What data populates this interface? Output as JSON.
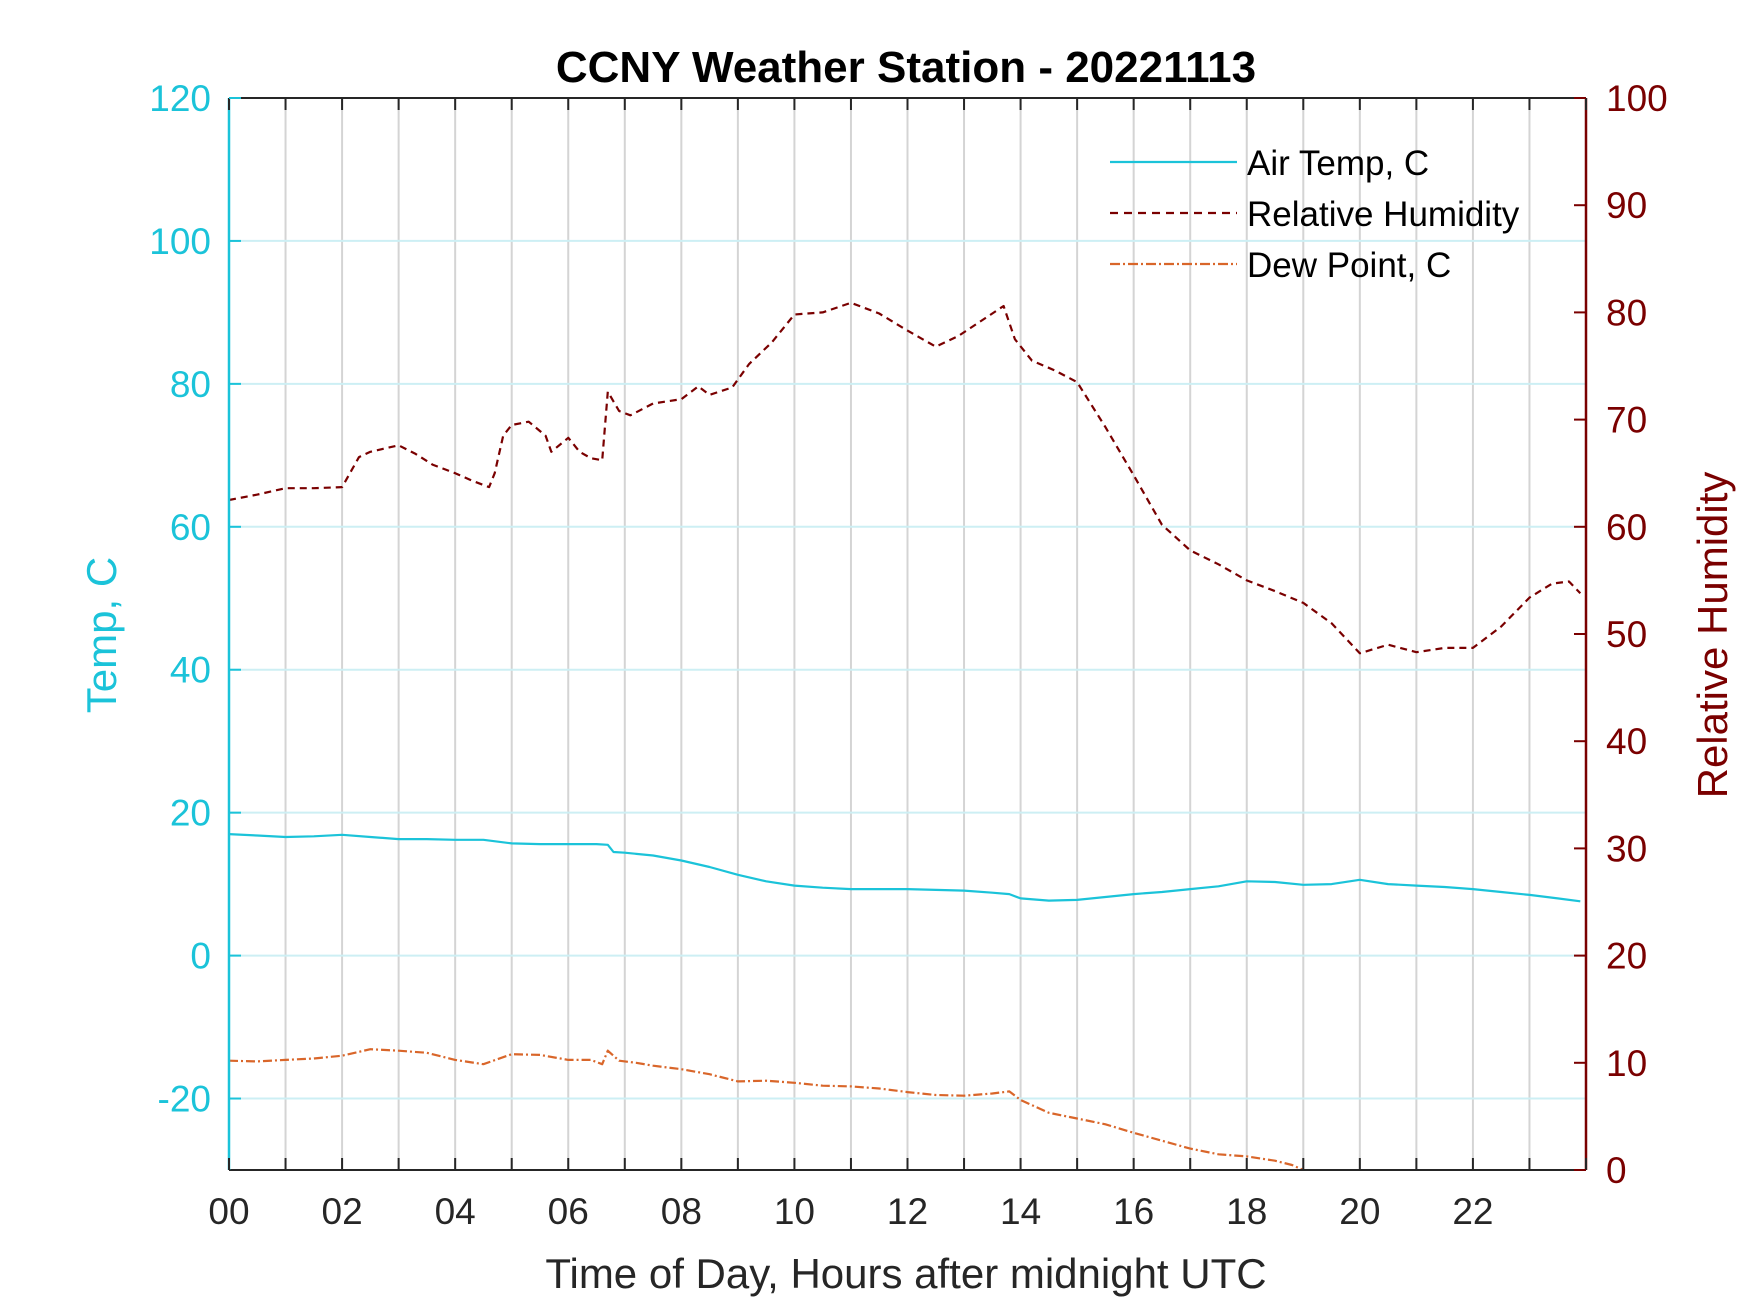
{
  "colors": {
    "air_temp": "#1BC3D9",
    "humidity": "#7A0000",
    "dew_point": "#D9662A",
    "left_axis": "#1BC3D9",
    "right_axis": "#7A0000",
    "vgrid": "#D4D4D4",
    "hgrid": "#CDEFF4",
    "x_axis": "#262626"
  },
  "chart_data": {
    "type": "line",
    "title": "CCNY Weather Station - 20221113",
    "xlabel": "Time of Day, Hours after midnight UTC",
    "ylabel_left": "Temp, C",
    "ylabel_right": "Relative Humidity",
    "xlim": [
      0,
      24
    ],
    "ylim_left": [
      -30,
      120
    ],
    "ylim_right": [
      0,
      100
    ],
    "x_ticks": [
      0,
      2,
      4,
      6,
      8,
      10,
      12,
      14,
      16,
      18,
      20,
      22
    ],
    "x_tick_labels": [
      "00",
      "02",
      "04",
      "06",
      "08",
      "10",
      "12",
      "14",
      "16",
      "18",
      "20",
      "22"
    ],
    "y_left_ticks": [
      -20,
      0,
      20,
      40,
      60,
      80,
      100,
      120
    ],
    "y_left_tick_labels": [
      "-20",
      "0",
      "20",
      "40",
      "60",
      "80",
      "100",
      "120"
    ],
    "y_right_ticks": [
      0,
      10,
      20,
      30,
      40,
      50,
      60,
      70,
      80,
      90,
      100
    ],
    "y_right_tick_labels": [
      "0",
      "10",
      "20",
      "30",
      "40",
      "50",
      "60",
      "70",
      "80",
      "90",
      "100"
    ],
    "grid": true,
    "legend_position": "top-right",
    "series": [
      {
        "name": "Air Temp, C",
        "axis": "left",
        "style": "solid",
        "x": [
          0,
          0.5,
          1,
          1.5,
          2,
          2.5,
          3,
          3.5,
          4,
          4.5,
          5,
          5.5,
          6,
          6.5,
          6.7,
          6.8,
          7,
          7.5,
          8,
          8.5,
          9,
          9.5,
          10,
          10.5,
          11,
          11.5,
          12,
          12.5,
          13,
          13.5,
          13.8,
          14,
          14.5,
          15,
          15.5,
          16,
          16.5,
          17,
          17.5,
          18,
          18.5,
          19,
          19.5,
          20,
          20.5,
          21,
          21.5,
          22,
          22.5,
          23,
          23.5,
          23.9
        ],
        "y": [
          17.0,
          16.8,
          16.6,
          16.7,
          16.9,
          16.6,
          16.3,
          16.3,
          16.2,
          16.2,
          15.7,
          15.6,
          15.6,
          15.6,
          15.5,
          14.5,
          14.4,
          14.0,
          13.3,
          12.4,
          11.3,
          10.4,
          9.8,
          9.5,
          9.3,
          9.3,
          9.3,
          9.2,
          9.1,
          8.8,
          8.6,
          8.0,
          7.7,
          7.8,
          8.2,
          8.6,
          8.9,
          9.3,
          9.7,
          10.4,
          10.3,
          9.9,
          10.0,
          10.6,
          10.0,
          9.8,
          9.6,
          9.3,
          8.9,
          8.5,
          8.0,
          7.6
        ]
      },
      {
        "name": "Relative Humidity",
        "axis": "right",
        "style": "dashed",
        "x": [
          0,
          0.5,
          1,
          1.5,
          2,
          2.3,
          2.5,
          3,
          3.3,
          3.6,
          4,
          4.3,
          4.6,
          4.7,
          4.85,
          5,
          5.3,
          5.6,
          5.7,
          6,
          6.2,
          6.4,
          6.6,
          6.7,
          6.9,
          7.1,
          7.5,
          8,
          8.3,
          8.5,
          8.9,
          9.2,
          9.6,
          10,
          10.5,
          11,
          11.5,
          12,
          12.5,
          12.9,
          13.3,
          13.7,
          13.9,
          14.2,
          14.6,
          15,
          15.5,
          16,
          16.5,
          17,
          17.5,
          18,
          18.5,
          19,
          19.5,
          20,
          20.5,
          21,
          21.5,
          22,
          22.5,
          23,
          23.4,
          23.7,
          23.9
        ],
        "y": [
          62.5,
          63.0,
          63.6,
          63.6,
          63.7,
          66.5,
          67.0,
          67.6,
          66.8,
          65.8,
          65.0,
          64.3,
          63.7,
          65.0,
          68.5,
          69.5,
          69.8,
          68.5,
          67.0,
          68.3,
          67.0,
          66.4,
          66.2,
          72.6,
          70.8,
          70.4,
          71.5,
          71.9,
          73.1,
          72.3,
          73.0,
          75.2,
          77.2,
          79.8,
          80.0,
          80.9,
          79.9,
          78.3,
          76.8,
          77.8,
          79.2,
          80.6,
          77.5,
          75.5,
          74.6,
          73.5,
          69.3,
          64.8,
          60.2,
          57.8,
          56.5,
          55.0,
          54.0,
          52.9,
          51.0,
          48.2,
          49.0,
          48.3,
          48.7,
          48.7,
          50.7,
          53.4,
          54.7,
          54.9,
          53.8
        ]
      },
      {
        "name": "Dew Point, C",
        "axis": "left",
        "style": "dashdot",
        "x": [
          0,
          0.5,
          1,
          1.5,
          2,
          2.5,
          3,
          3.5,
          4,
          4.5,
          5,
          5.5,
          6,
          6.4,
          6.6,
          6.7,
          6.9,
          7.2,
          7.5,
          8,
          8.5,
          9,
          9.5,
          10,
          10.5,
          11,
          11.5,
          12,
          12.5,
          13,
          13.5,
          13.8,
          14,
          14.5,
          15,
          15.5,
          16,
          16.5,
          17,
          17.5,
          18,
          18.5,
          18.8,
          19.0
        ],
        "y": [
          -14.7,
          -14.8,
          -14.6,
          -14.4,
          -14.0,
          -13.1,
          -13.3,
          -13.6,
          -14.6,
          -15.2,
          -13.8,
          -13.9,
          -14.6,
          -14.6,
          -15.2,
          -13.3,
          -14.7,
          -15.0,
          -15.4,
          -15.9,
          -16.6,
          -17.6,
          -17.5,
          -17.8,
          -18.2,
          -18.3,
          -18.6,
          -19.1,
          -19.5,
          -19.6,
          -19.3,
          -19.0,
          -20.2,
          -22.0,
          -22.8,
          -23.6,
          -24.8,
          -25.9,
          -27.0,
          -27.8,
          -28.1,
          -28.7,
          -29.3,
          -30.0
        ]
      }
    ]
  }
}
